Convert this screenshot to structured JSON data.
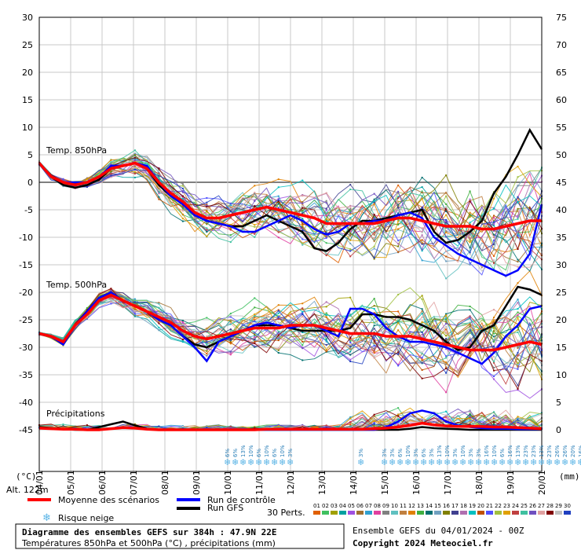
{
  "chart_data": {
    "type": "line",
    "title": "Diagramme des ensembles GEFS sur 384h : 47.9N 22E",
    "subtitle": "Températures 850hPa et 500hPa (°C) , précipitations (mm)",
    "run_info": "Ensemble GEFS du 04/01/2024 - 00Z",
    "copyright": "Copyright 2024 Meteociel.fr",
    "left_axis_unit": "(°C)",
    "right_axis_unit": "(mm)",
    "altitude": "Alt. 122m",
    "left_ticks": [
      30,
      25,
      20,
      15,
      10,
      5,
      0,
      -5,
      -10,
      -15,
      -20,
      -25,
      -30,
      -35,
      -40,
      -45
    ],
    "right_ticks": [
      75,
      70,
      65,
      60,
      55,
      50,
      45,
      40,
      35,
      30,
      25,
      20,
      15,
      10,
      5,
      0
    ],
    "ylim": [
      -45,
      30
    ],
    "date_labels": [
      "04/01",
      "05/01",
      "06/01",
      "07/01",
      "08/01",
      "09/01",
      "10/01",
      "11/01",
      "12/01",
      "13/01",
      "14/01",
      "15/01",
      "16/01",
      "17/01",
      "18/01",
      "19/01",
      "20/01"
    ],
    "panel_labels": {
      "t850": "Temp. 850hPa",
      "t500": "Temp. 500hPa",
      "precip": "Précipitations"
    },
    "series": [
      {
        "name": "Moyenne des scénarios",
        "color": "#ff0000",
        "t850": [
          3.5,
          1,
          0,
          -0.5,
          0,
          1,
          2.5,
          3,
          3.5,
          2.5,
          0,
          -2,
          -3.5,
          -5.5,
          -6.5,
          -6.5,
          -6,
          -5.5,
          -5,
          -4.5,
          -5,
          -5.5,
          -6,
          -6.5,
          -7.5,
          -7.5,
          -7.5,
          -7.5,
          -7.5,
          -7,
          -6.5,
          -6.5,
          -7,
          -7.5,
          -8,
          -8,
          -8,
          -8.5,
          -8.5,
          -8,
          -7.5,
          -7,
          -7
        ],
        "t500": [
          -27.5,
          -28,
          -29,
          -26,
          -24,
          -21.5,
          -20.5,
          -21.5,
          -22.5,
          -23.5,
          -24.5,
          -25.5,
          -27,
          -28,
          -28.5,
          -28,
          -27.5,
          -27,
          -26.5,
          -26.5,
          -26.5,
          -26,
          -26,
          -26,
          -26.5,
          -27,
          -27.5,
          -27.5,
          -27.5,
          -28,
          -28,
          -28,
          -28.5,
          -29,
          -29.5,
          -30,
          -30.5,
          -30.5,
          -30.5,
          -30,
          -29.5,
          -29,
          -29.5
        ],
        "precip": [
          0.3,
          0.2,
          0.1,
          0.1,
          0,
          0,
          0.2,
          0.4,
          0.3,
          0.1,
          0,
          0,
          0,
          0,
          0,
          0,
          0,
          0,
          0,
          0.1,
          0.1,
          0.1,
          0.1,
          0.1,
          0.1,
          0.1,
          0.1,
          0.1,
          0.2,
          0.3,
          0.5,
          0.8,
          1.2,
          0.9,
          0.7,
          0.6,
          0.6,
          0.6,
          0.5,
          0.5,
          0.4,
          0.3,
          0.2
        ]
      },
      {
        "name": "Run de contrôle",
        "color": "#0000ff",
        "t850": [
          3.5,
          1,
          0,
          0,
          0,
          1,
          3,
          3,
          3.5,
          3,
          0,
          -2.5,
          -4,
          -6,
          -7,
          -7.5,
          -8,
          -9,
          -9,
          -8,
          -7,
          -6,
          -7,
          -8.5,
          -9.5,
          -9,
          -7.5,
          -7.5,
          -7,
          -7,
          -6,
          -5.5,
          -6.5,
          -10,
          -11.5,
          -13,
          -14,
          -15,
          -16,
          -17,
          -16,
          -13,
          -4
        ],
        "t500": [
          -27.5,
          -28,
          -29.5,
          -26,
          -23.5,
          -21,
          -20,
          -21.5,
          -22.5,
          -23.5,
          -25,
          -26,
          -28,
          -30,
          -32.5,
          -29,
          -28,
          -27,
          -26,
          -25.5,
          -26,
          -26.5,
          -26,
          -26,
          -27,
          -28,
          -23,
          -23,
          -24,
          -26.5,
          -28,
          -29,
          -29,
          -29.5,
          -30,
          -31,
          -32,
          -33,
          -31,
          -28,
          -26,
          -23,
          -22.5
        ],
        "precip": [
          0.3,
          0.2,
          0.1,
          0.1,
          0,
          0,
          0.2,
          0.4,
          0.3,
          0.1,
          0,
          0,
          0,
          0,
          0,
          0,
          0,
          0,
          0,
          0,
          0,
          0,
          0,
          0,
          0,
          0,
          0,
          0,
          0,
          0.5,
          1.5,
          3,
          3.5,
          3,
          1.5,
          0.8,
          0.5,
          0.3,
          0.2,
          0.2,
          0.1,
          0.1,
          0.1
        ]
      },
      {
        "name": "Run GFS",
        "color": "#000000",
        "t850": [
          3.5,
          1,
          -0.5,
          -1,
          -0.5,
          0.5,
          2.5,
          3,
          3.5,
          2.5,
          -0.5,
          -2.5,
          -4,
          -6,
          -7,
          -7.5,
          -8,
          -8,
          -7,
          -6,
          -7,
          -8,
          -9,
          -12,
          -12.5,
          -11,
          -8.5,
          -7,
          -7,
          -6.5,
          -6,
          -5.5,
          -5,
          -9,
          -11,
          -10.5,
          -9,
          -7,
          -2,
          1,
          5,
          9.5,
          6
        ],
        "t500": [
          -27.5,
          -28,
          -29.5,
          -26,
          -23.5,
          -21,
          -20,
          -21.5,
          -22.5,
          -23.5,
          -25,
          -26,
          -28,
          -29.5,
          -30,
          -29,
          -28,
          -27,
          -26,
          -26,
          -26,
          -26.5,
          -27,
          -27,
          -27,
          -27,
          -26.5,
          -24,
          -24,
          -24.5,
          -24.5,
          -25,
          -26,
          -27,
          -29,
          -30.5,
          -30,
          -27,
          -26,
          -22.5,
          -19,
          -19.5,
          -20.5
        ],
        "precip": [
          0.5,
          0.3,
          0.1,
          0,
          0,
          0.5,
          1,
          1.5,
          0.8,
          0.2,
          0,
          0,
          0,
          0,
          0,
          0,
          0,
          0,
          0,
          0,
          0,
          0,
          0,
          0,
          0,
          0,
          0,
          0,
          0,
          0,
          0,
          0.2,
          0.5,
          0.3,
          0.2,
          0.1,
          0,
          0,
          0,
          0,
          0,
          0,
          0
        ]
      }
    ],
    "snow_risk_pct": [
      {
        "x": 6.0,
        "v": "6%"
      },
      {
        "x": 6.25,
        "v": "6%"
      },
      {
        "x": 6.5,
        "v": "13%"
      },
      {
        "x": 6.75,
        "v": "10%"
      },
      {
        "x": 7.0,
        "v": "6%"
      },
      {
        "x": 7.25,
        "v": "10%"
      },
      {
        "x": 7.5,
        "v": "6%"
      },
      {
        "x": 7.75,
        "v": "10%"
      },
      {
        "x": 8.0,
        "v": "3%"
      },
      {
        "x": 10.25,
        "v": "3%"
      },
      {
        "x": 11.0,
        "v": "3%"
      },
      {
        "x": 11.25,
        "v": "3%"
      },
      {
        "x": 11.5,
        "v": "6%"
      },
      {
        "x": 11.75,
        "v": "10%"
      },
      {
        "x": 12.0,
        "v": "3%"
      },
      {
        "x": 12.25,
        "v": "6%"
      },
      {
        "x": 12.5,
        "v": "3%"
      },
      {
        "x": 12.75,
        "v": "13%"
      },
      {
        "x": 13.0,
        "v": "10%"
      },
      {
        "x": 13.25,
        "v": "3%"
      },
      {
        "x": 13.5,
        "v": "10%"
      },
      {
        "x": 13.75,
        "v": "3%"
      },
      {
        "x": 14.0,
        "v": "3%"
      },
      {
        "x": 14.25,
        "v": "16%"
      },
      {
        "x": 14.5,
        "v": "10%"
      },
      {
        "x": 14.75,
        "v": "6%"
      },
      {
        "x": 15.0,
        "v": "16%"
      },
      {
        "x": 15.25,
        "v": "13%"
      },
      {
        "x": 15.5,
        "v": "23%"
      },
      {
        "x": 15.75,
        "v": "23%"
      },
      {
        "x": 16.0,
        "v": "13%"
      },
      {
        "x": 16.25,
        "v": "23%"
      },
      {
        "x": 16.5,
        "v": "26%"
      },
      {
        "x": 16.75,
        "v": "26%"
      },
      {
        "x": 17.0,
        "v": "20%"
      },
      {
        "x": 17.25,
        "v": "16%"
      },
      {
        "x": 17.5,
        "v": "10%"
      },
      {
        "x": 17.75,
        "v": "10%"
      },
      {
        "x": 18.0,
        "v": "26%"
      },
      {
        "x": 18.25,
        "v": "10%"
      },
      {
        "x": 18.5,
        "v": "16%"
      },
      {
        "x": 18.75,
        "v": "13%"
      },
      {
        "x": 19.0,
        "v": "6%"
      },
      {
        "x": 19.25,
        "v": "13%"
      },
      {
        "x": 19.5,
        "v": "13%"
      },
      {
        "x": 19.75,
        "v": "23%"
      }
    ]
  },
  "legend": {
    "mean": "Moyenne des scénarios",
    "control": "Run de contrôle",
    "gfs": "Run GFS",
    "snow": "Risque neige",
    "perts_label": "30 Perts.",
    "pert_numbers": [
      "01",
      "02",
      "03",
      "04",
      "05",
      "06",
      "07",
      "08",
      "09",
      "10",
      "11",
      "12",
      "13",
      "14",
      "15",
      "16",
      "17",
      "18",
      "19",
      "20",
      "21",
      "22",
      "23",
      "24",
      "25",
      "26",
      "27",
      "28",
      "29",
      "30"
    ],
    "pert_colors": [
      "#e06000",
      "#40c060",
      "#a0a000",
      "#00a0a0",
      "#a050e0",
      "#a07030",
      "#30a0d0",
      "#e040a0",
      "#808080",
      "#60c0c0",
      "#c08040",
      "#e08000",
      "#40b040",
      "#007070",
      "#70a0c0",
      "#808000",
      "#404090",
      "#b070b0",
      "#00c0c0",
      "#c05000",
      "#5050ff",
      "#a0c040",
      "#e0a000",
      "#c04040",
      "#40c0a0",
      "#7050c0",
      "#e0a0a0",
      "#800000",
      "#c0c0c0",
      "#2040c0"
    ]
  },
  "colors": {
    "mean": "#ff0000",
    "control": "#0000ff",
    "gfs": "#000000",
    "grid": "#c8c8c8",
    "zero_line": "#808080",
    "snow_icon": "#5ab4e6"
  }
}
